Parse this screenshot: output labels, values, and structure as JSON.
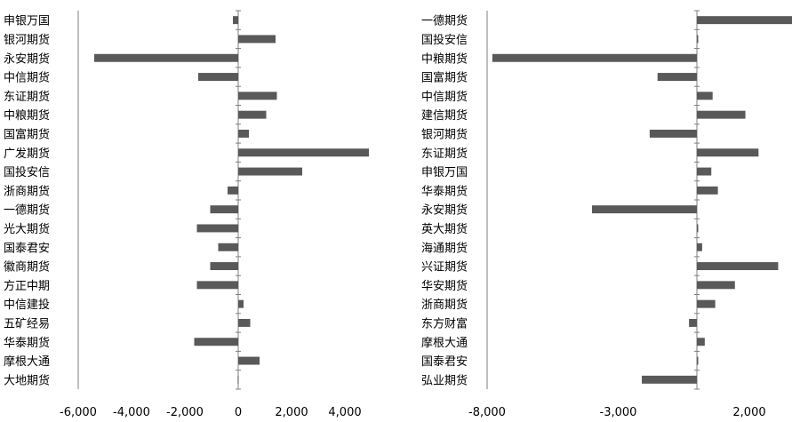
{
  "chart_data": [
    {
      "type": "bar",
      "orientation": "horizontal",
      "categories": [
        "申银万国",
        "银河期货",
        "永安期货",
        "中信期货",
        "东证期货",
        "中粮期货",
        "国富期货",
        "广发期货",
        "国投安信",
        "浙商期货",
        "一德期货",
        "光大期货",
        "国泰君安",
        "徽商期货",
        "方正中期",
        "中信建投",
        "五矿经易",
        "华泰期货",
        "摩根大通",
        "大地期货"
      ],
      "values": [
        -200,
        1400,
        -5400,
        -1500,
        1450,
        1050,
        400,
        4900,
        2400,
        -400,
        -1050,
        -1550,
        -750,
        -1050,
        -1550,
        200,
        450,
        -1650,
        800,
        -20
      ],
      "xlim": [
        -6000,
        5000
      ],
      "xticks": [
        -6000,
        -4000,
        -2000,
        0,
        2000,
        4000
      ],
      "xtick_labels": [
        "-6,000",
        "-4,000",
        "-2,000",
        "0",
        "2,000",
        "4,000"
      ],
      "color": "#595959",
      "grid": false
    },
    {
      "type": "bar",
      "orientation": "horizontal",
      "categories": [
        "一德期货",
        "国投安信",
        "中粮期货",
        "国富期货",
        "中信期货",
        "建信期货",
        "银河期货",
        "东证期货",
        "申银万国",
        "华泰期货",
        "永安期货",
        "英大期货",
        "海通期货",
        "兴证期货",
        "华安期货",
        "浙商期货",
        "东方财富",
        "摩根大通",
        "国泰君安",
        "弘业期货"
      ],
      "values": [
        4000,
        50,
        -7800,
        -1500,
        600,
        1850,
        -1800,
        2350,
        550,
        800,
        -4000,
        50,
        200,
        3100,
        1450,
        700,
        -300,
        300,
        50,
        -2100
      ],
      "xlim": [
        -8000,
        3800
      ],
      "xticks": [
        -8000,
        -3000,
        2000
      ],
      "xtick_labels": [
        "-8,000",
        "-3,000",
        "2,000"
      ],
      "color": "#595959",
      "grid": false
    }
  ]
}
